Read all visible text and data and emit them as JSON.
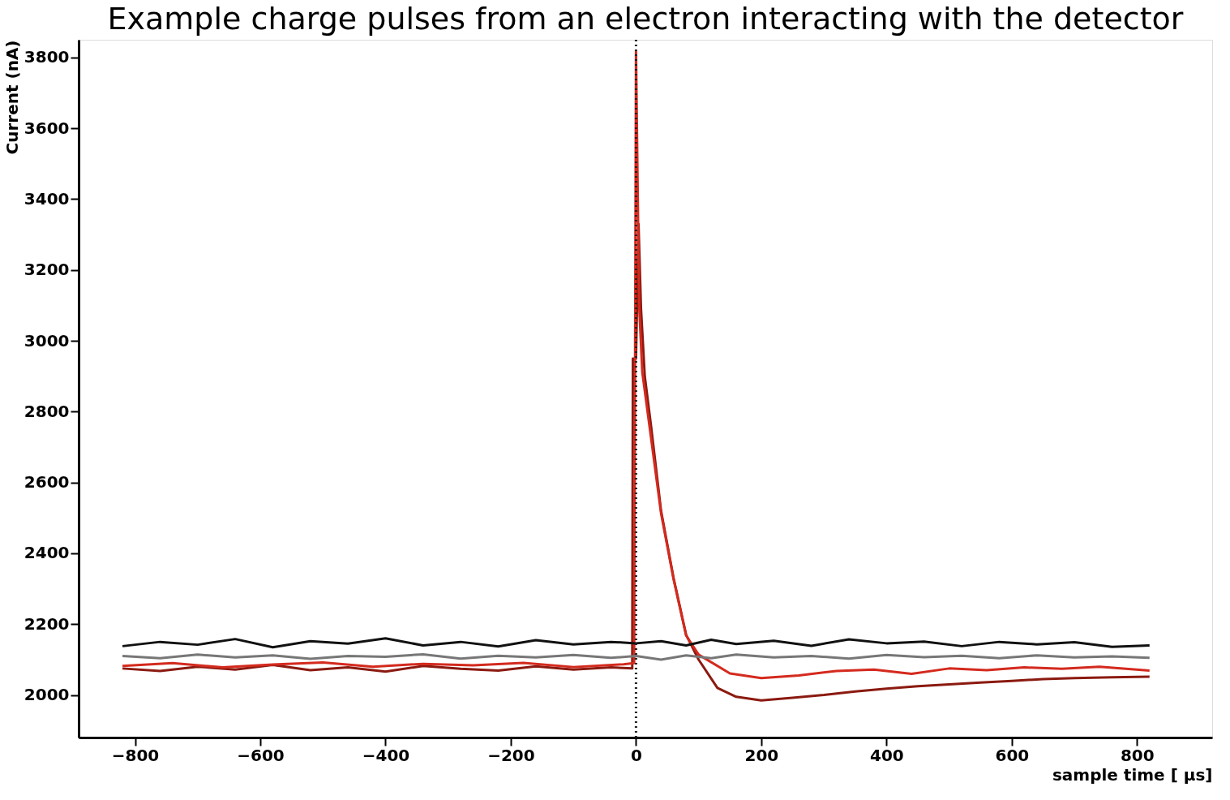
{
  "chart_data": {
    "type": "line",
    "title": "Example charge pulses from an electron interacting with the detector",
    "xlabel": "sample time [  μs]",
    "ylabel": "Current (nA)",
    "xlim": [
      -890,
      920
    ],
    "ylim": [
      1880,
      3850
    ],
    "xticks": [
      -800,
      -600,
      -400,
      -200,
      0,
      200,
      400,
      600,
      800
    ],
    "yticks": [
      2000,
      2200,
      2400,
      2600,
      2800,
      3000,
      3200,
      3400,
      3600,
      3800
    ],
    "grid": false,
    "line_style": "solid",
    "marker": "none",
    "series": [
      {
        "color": "#8b1a10",
        "x": [
          -820,
          -760,
          -700,
          -640,
          -580,
          -520,
          -460,
          -400,
          -340,
          -280,
          -220,
          -160,
          -100,
          -40,
          -6,
          -5,
          0,
          4,
          8,
          14,
          24,
          40,
          60,
          80,
          100,
          130,
          160,
          200,
          250,
          300,
          350,
          400,
          450,
          500,
          550,
          600,
          650,
          700,
          760,
          820
        ],
        "values": [
          2075,
          2068,
          2080,
          2072,
          2085,
          2070,
          2078,
          2066,
          2082,
          2074,
          2069,
          2081,
          2072,
          2078,
          2075,
          2950,
          2950,
          3330,
          3090,
          2900,
          2760,
          2520,
          2330,
          2170,
          2100,
          2020,
          1995,
          1985,
          1992,
          2000,
          2010,
          2018,
          2025,
          2030,
          2035,
          2040,
          2045,
          2048,
          2050,
          2052
        ]
      },
      {
        "color": "#d42a1e",
        "x": [
          -820,
          -740,
          -660,
          -580,
          -500,
          -420,
          -340,
          -260,
          -180,
          -100,
          -20,
          -3,
          0,
          5,
          10,
          20,
          40,
          60,
          80,
          100,
          150,
          200,
          260,
          320,
          380,
          440,
          500,
          560,
          620,
          680,
          740,
          820
        ],
        "values": [
          2082,
          2090,
          2078,
          2086,
          2092,
          2080,
          2088,
          2084,
          2091,
          2079,
          2087,
          2090,
          3816,
          3098,
          2912,
          2779,
          2513,
          2327,
          2168,
          2114,
          2061,
          2048,
          2055,
          2068,
          2072,
          2060,
          2075,
          2070,
          2078,
          2074,
          2080,
          2069
        ]
      },
      {
        "color": "#777777",
        "x": [
          -820,
          -760,
          -700,
          -640,
          -580,
          -520,
          -460,
          -400,
          -340,
          -280,
          -220,
          -160,
          -100,
          -40,
          0,
          40,
          80,
          120,
          160,
          220,
          280,
          340,
          400,
          460,
          520,
          580,
          640,
          700,
          760,
          820
        ],
        "values": [
          2110,
          2104,
          2114,
          2106,
          2112,
          2102,
          2110,
          2108,
          2115,
          2103,
          2111,
          2106,
          2113,
          2105,
          2110,
          2100,
          2112,
          2104,
          2114,
          2106,
          2110,
          2103,
          2113,
          2107,
          2111,
          2104,
          2112,
          2106,
          2109,
          2105
        ]
      },
      {
        "color": "#111111",
        "x": [
          -820,
          -760,
          -700,
          -640,
          -580,
          -520,
          -460,
          -400,
          -340,
          -280,
          -220,
          -160,
          -100,
          -40,
          0,
          40,
          80,
          120,
          160,
          220,
          280,
          340,
          400,
          460,
          520,
          580,
          640,
          700,
          760,
          820
        ],
        "values": [
          2138,
          2150,
          2142,
          2158,
          2135,
          2152,
          2145,
          2160,
          2140,
          2150,
          2137,
          2155,
          2143,
          2150,
          2146,
          2152,
          2140,
          2156,
          2144,
          2153,
          2139,
          2157,
          2146,
          2151,
          2138,
          2150,
          2143,
          2149,
          2136,
          2140
        ]
      }
    ],
    "ref_lines": [
      {
        "axis": "x",
        "value": 0,
        "color": "#222222",
        "line_style": "dotted"
      }
    ]
  }
}
